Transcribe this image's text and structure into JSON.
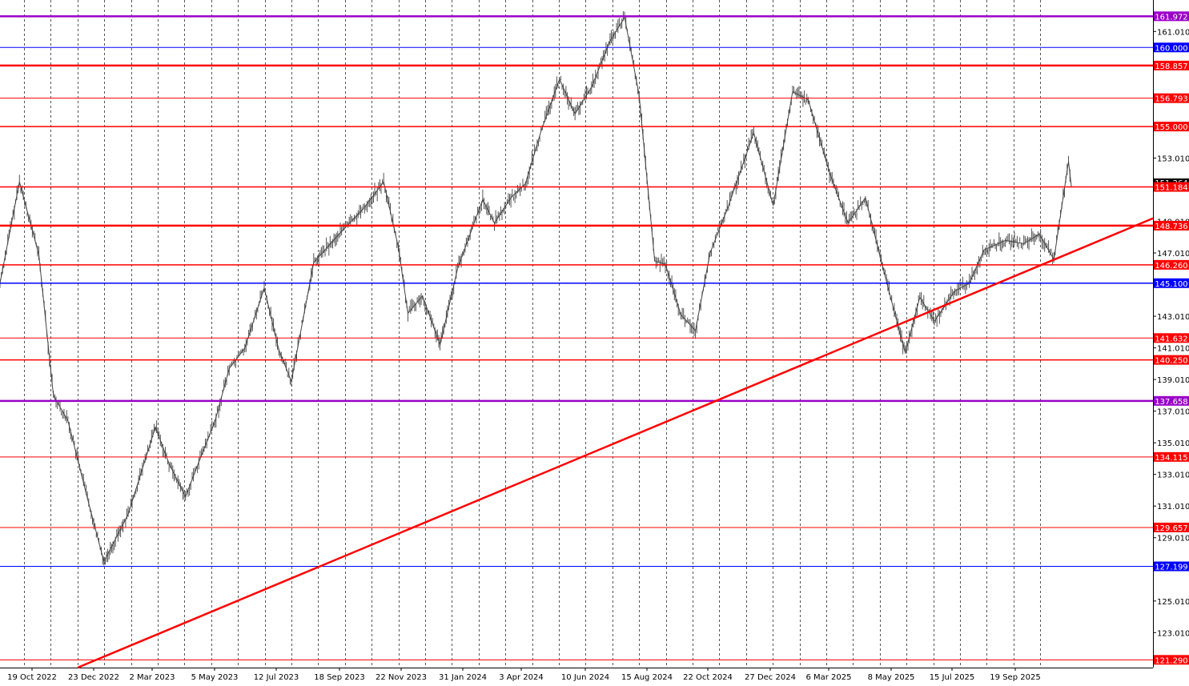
{
  "chart_data": {
    "type": "line",
    "title": "",
    "xlabel": "",
    "ylabel": "",
    "ylim": [
      120.8,
      163.0
    ],
    "x_tick_labels": [
      "19 Oct 2022",
      "23 Dec 2022",
      "2 Mar 2023",
      "5 May 2023",
      "12 Jul 2023",
      "18 Sep 2023",
      "22 Nov 2023",
      "31 Jan 2024",
      "3 Apr 2024",
      "10 Jun 2024",
      "15 Aug 2024",
      "22 Oct 2024",
      "27 Dec 2024",
      "6 Mar 2025",
      "8 May 2025",
      "15 Jul 2025",
      "19 Sep 2025"
    ],
    "y_tick_labels": [
      "161.010",
      "153.010",
      "149.010",
      "147.010",
      "143.010",
      "141.010",
      "139.010",
      "137.010",
      "135.010",
      "133.010",
      "131.010",
      "129.010",
      "125.010",
      "123.010"
    ],
    "price_series": {
      "name": "",
      "x": [
        "2022-10-01",
        "2022-10-21",
        "2022-11-10",
        "2022-11-25",
        "2022-12-10",
        "2022-12-30",
        "2023-01-16",
        "2023-02-10",
        "2023-03-10",
        "2023-03-24",
        "2023-04-10",
        "2023-04-25",
        "2023-05-10",
        "2023-05-25",
        "2023-06-10",
        "2023-06-30",
        "2023-07-15",
        "2023-07-28",
        "2023-08-20",
        "2023-09-15",
        "2023-10-10",
        "2023-10-31",
        "2023-11-15",
        "2023-11-25",
        "2023-12-10",
        "2023-12-28",
        "2024-01-15",
        "2024-02-10",
        "2024-02-22",
        "2024-03-10",
        "2024-03-25",
        "2024-04-10",
        "2024-04-29",
        "2024-05-15",
        "2024-06-01",
        "2024-06-20",
        "2024-07-05",
        "2024-07-20",
        "2024-08-05",
        "2024-08-16",
        "2024-09-01",
        "2024-09-16",
        "2024-10-01",
        "2024-10-20",
        "2024-11-15",
        "2024-12-05",
        "2024-12-25",
        "2025-01-10",
        "2025-02-01",
        "2025-02-20",
        "2025-03-10",
        "2025-03-25",
        "2025-04-10",
        "2025-04-20",
        "2025-05-05",
        "2025-05-20",
        "2025-06-10",
        "2025-06-25",
        "2025-07-10",
        "2025-08-01",
        "2025-08-20",
        "2025-09-05",
        "2025-09-20",
        "2025-10-05",
        "2025-10-08"
      ],
      "values": [
        145.1,
        151.5,
        146.9,
        138.0,
        136.4,
        131.5,
        127.5,
        130.5,
        136.0,
        133.7,
        131.6,
        134.0,
        136.3,
        139.7,
        141.0,
        144.8,
        140.9,
        138.9,
        146.4,
        148.2,
        149.8,
        151.5,
        147.4,
        143.2,
        144.3,
        141.2,
        146.0,
        150.4,
        148.9,
        150.5,
        151.4,
        154.7,
        158.0,
        155.8,
        157.5,
        160.4,
        161.9,
        157.0,
        146.5,
        146.3,
        143.1,
        142.1,
        147.0,
        150.0,
        154.6,
        150.0,
        157.2,
        156.7,
        152.1,
        148.9,
        150.5,
        146.8,
        143.0,
        140.7,
        144.2,
        142.7,
        144.6,
        145.1,
        147.2,
        147.8,
        147.6,
        148.2,
        146.6,
        152.8,
        151.2
      ]
    },
    "levels": [
      {
        "label": "161.972",
        "value": 161.972,
        "color": "#9a00c8",
        "weight": "bold"
      },
      {
        "label": "160.000",
        "value": 160.0,
        "color": "#0000ff",
        "weight": "thin"
      },
      {
        "label": "158.857",
        "value": 158.857,
        "color": "#ff0000",
        "weight": "bold"
      },
      {
        "label": "156.793",
        "value": 156.793,
        "color": "#ff0000",
        "weight": "thin"
      },
      {
        "label": "155.000",
        "value": 155.0,
        "color": "#ff0000",
        "weight": "medium"
      },
      {
        "label": "151.184",
        "value": 151.184,
        "color": "#ff0000",
        "weight": "medium"
      },
      {
        "label": "148.736",
        "value": 148.736,
        "color": "#ff0000",
        "weight": "bold"
      },
      {
        "label": "146.260",
        "value": 146.26,
        "color": "#ff0000",
        "weight": "medium"
      },
      {
        "label": "145.100",
        "value": 145.1,
        "color": "#0000ff",
        "weight": "medium"
      },
      {
        "label": "141.632",
        "value": 141.632,
        "color": "#ff0000",
        "weight": "thin"
      },
      {
        "label": "140.250",
        "value": 140.25,
        "color": "#ff0000",
        "weight": "medium"
      },
      {
        "label": "137.658",
        "value": 137.658,
        "color": "#9a00c8",
        "weight": "bold"
      },
      {
        "label": "134.115",
        "value": 134.115,
        "color": "#ff0000",
        "weight": "thin"
      },
      {
        "label": "129.657",
        "value": 129.657,
        "color": "#ff0000",
        "weight": "thin"
      },
      {
        "label": "127.199",
        "value": 127.199,
        "color": "#0000ff",
        "weight": "thin"
      },
      {
        "label": "121.290",
        "value": 121.29,
        "color": "#ff0000",
        "weight": "thin"
      }
    ],
    "trendline": {
      "color": "#ff0000",
      "from": {
        "x": "2022-12-20",
        "y": 120.8
      },
      "to": {
        "x": "2025-12-31",
        "y": 149.2
      }
    },
    "current_price_label": "151.264",
    "grid": "vertical-dashed"
  }
}
